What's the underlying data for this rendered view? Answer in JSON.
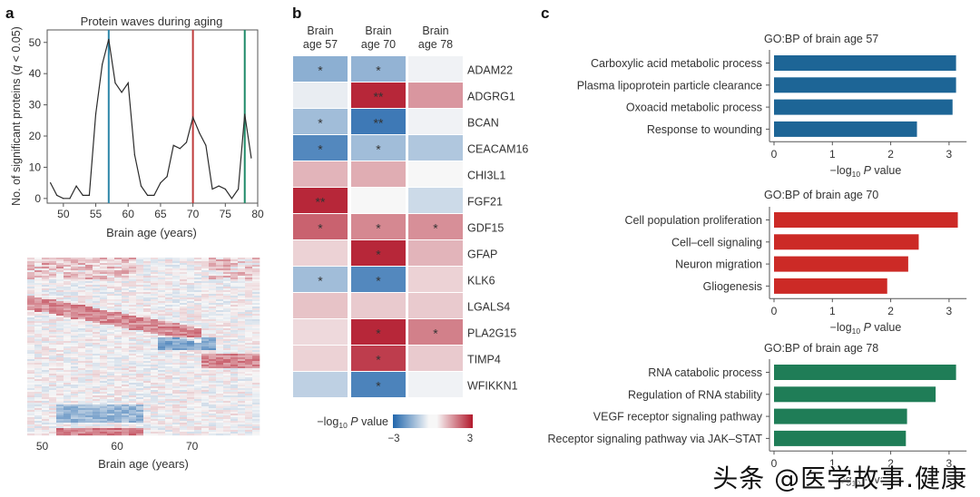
{
  "panels": {
    "a": "a",
    "b": "b",
    "c": "c"
  },
  "watermark": "头条 @医学故事.健康",
  "colors": {
    "age57": "#1d6596",
    "age70": "#cc2a26",
    "age78": "#1f7d57",
    "line": "#2b2b2b",
    "heat_neg": "#2166ac",
    "heat_mid": "#f7f7f7",
    "heat_pos": "#b2182b"
  },
  "chart_data": [
    {
      "id": "protein-waves",
      "type": "line",
      "title": "Protein waves during aging",
      "xlabel": "Brain age (years)",
      "ylabel_parts": [
        "No. of significant proteins (",
        "q",
        " < 0.05)"
      ],
      "xlim": [
        47.5,
        80
      ],
      "ylim": [
        -1.5,
        54
      ],
      "xticks": [
        50,
        55,
        60,
        65,
        70,
        75,
        80
      ],
      "yticks": [
        0,
        10,
        20,
        30,
        40,
        50
      ],
      "x": [
        48,
        49,
        50,
        51,
        52,
        53,
        54,
        55,
        56,
        57,
        58,
        59,
        60,
        61,
        62,
        63,
        64,
        65,
        66,
        67,
        68,
        69,
        70,
        71,
        72,
        73,
        74,
        75,
        76,
        77,
        78,
        79
      ],
      "y": [
        5,
        1,
        0,
        0,
        4,
        1,
        1,
        27,
        43,
        51,
        37,
        34,
        37,
        14,
        4,
        1,
        1,
        5,
        7,
        17,
        16,
        18,
        26,
        21,
        17,
        3,
        4,
        3,
        0,
        3,
        27,
        13
      ],
      "vlines": [
        {
          "x": 57,
          "color": "#2e86a8",
          "label": "brain age 57"
        },
        {
          "x": 70,
          "color": "#c03b3b",
          "label": "brain age 70"
        },
        {
          "x": 78,
          "color": "#1f8a68",
          "label": "brain age 78"
        }
      ]
    },
    {
      "id": "protein-heatmap",
      "type": "heatmap",
      "xlabel": "Brain age (years)",
      "xticks": [
        50,
        60,
        70
      ],
      "xlim": [
        48,
        79
      ],
      "note": "Dense protein-by-age heatmap; individual values not legible"
    },
    {
      "id": "key-proteins",
      "type": "heatmap",
      "columns": [
        "Brain\nage 57",
        "Brain\nage 70",
        "Brain\nage 78"
      ],
      "column_lines": [
        [
          "Brain",
          "age 57"
        ],
        [
          "Brain",
          "age 70"
        ],
        [
          "Brain",
          "age 78"
        ]
      ],
      "rows": [
        "ADAM22",
        "ADGRG1",
        "BCAN",
        "CEACAM16",
        "CHI3L1",
        "FGF21",
        "GDF15",
        "GFAP",
        "KLK6",
        "LGALS4",
        "PLA2G15",
        "TIMP4",
        "WFIKKN1"
      ],
      "values": [
        [
          -1.5,
          -1.4,
          -0.1
        ],
        [
          -0.2,
          2.8,
          1.3
        ],
        [
          -1.2,
          -2.6,
          -0.1
        ],
        [
          -2.3,
          -1.2,
          -1.0
        ],
        [
          0.9,
          1.0,
          0.0
        ],
        [
          2.8,
          0.0,
          -0.6
        ],
        [
          2.0,
          1.5,
          1.4
        ],
        [
          0.5,
          2.8,
          0.9
        ],
        [
          -1.2,
          -2.3,
          0.5
        ],
        [
          0.7,
          0.6,
          0.6
        ],
        [
          0.4,
          2.8,
          1.6
        ],
        [
          0.5,
          2.5,
          0.6
        ],
        [
          -0.8,
          -2.4,
          -0.1
        ]
      ],
      "significance": [
        [
          "*",
          "*",
          ""
        ],
        [
          "",
          "**",
          ""
        ],
        [
          "*",
          "**",
          ""
        ],
        [
          "*",
          "*",
          ""
        ],
        [
          "",
          "",
          ""
        ],
        [
          "**",
          "",
          ""
        ],
        [
          "*",
          "*",
          "*"
        ],
        [
          "",
          "*",
          ""
        ],
        [
          "*",
          "*",
          ""
        ],
        [
          "",
          "",
          ""
        ],
        [
          "",
          "*",
          "*"
        ],
        [
          "",
          "*",
          ""
        ],
        [
          "",
          "*",
          ""
        ]
      ],
      "colorbar": {
        "label_prefix": "−log",
        "label_sub": "10",
        "label_italic": "P",
        "label_suffix": " value",
        "min": -3,
        "max": 3,
        "min_label": "−3",
        "max_label": "3"
      }
    },
    {
      "id": "gobp-57",
      "type": "bar",
      "orientation": "horizontal",
      "title": "GO:BP of brain age 57",
      "categories": [
        "Carboxylic acid metabolic process",
        "Plasma lipoprotein particle clearance",
        "Oxoacid metabolic process",
        "Response to wounding"
      ],
      "values": [
        3.12,
        3.12,
        3.06,
        2.45
      ],
      "xlim": [
        0,
        3.3
      ],
      "xticks": [
        0,
        1,
        2,
        3
      ],
      "xlabel_prefix": "−log",
      "xlabel_sub": "10",
      "xlabel_italic": "P",
      "xlabel_suffix": " value",
      "color": "#1d6596"
    },
    {
      "id": "gobp-70",
      "type": "bar",
      "orientation": "horizontal",
      "title": "GO:BP of brain age 70",
      "categories": [
        "Cell population proliferation",
        "Cell–cell signaling",
        "Neuron migration",
        "Gliogenesis"
      ],
      "values": [
        3.15,
        2.48,
        2.3,
        1.94
      ],
      "xlim": [
        0,
        3.3
      ],
      "xticks": [
        0,
        1,
        2,
        3
      ],
      "xlabel_prefix": "−log",
      "xlabel_sub": "10",
      "xlabel_italic": "P",
      "xlabel_suffix": " value",
      "color": "#cc2a26"
    },
    {
      "id": "gobp-78",
      "type": "bar",
      "orientation": "horizontal",
      "title": "GO:BP of brain age 78",
      "categories": [
        "RNA catabolic process",
        "Regulation of RNA stability",
        "VEGF receptor signaling pathway",
        "Receptor signaling pathway via JAK–STAT"
      ],
      "values": [
        3.12,
        2.77,
        2.28,
        2.26
      ],
      "xlim": [
        0,
        3.3
      ],
      "xticks": [
        0,
        1,
        2,
        3
      ],
      "xlabel_prefix": "−log",
      "xlabel_sub": "10",
      "xlabel_italic": "P",
      "xlabel_suffix": " value",
      "color": "#1f7d57"
    }
  ]
}
